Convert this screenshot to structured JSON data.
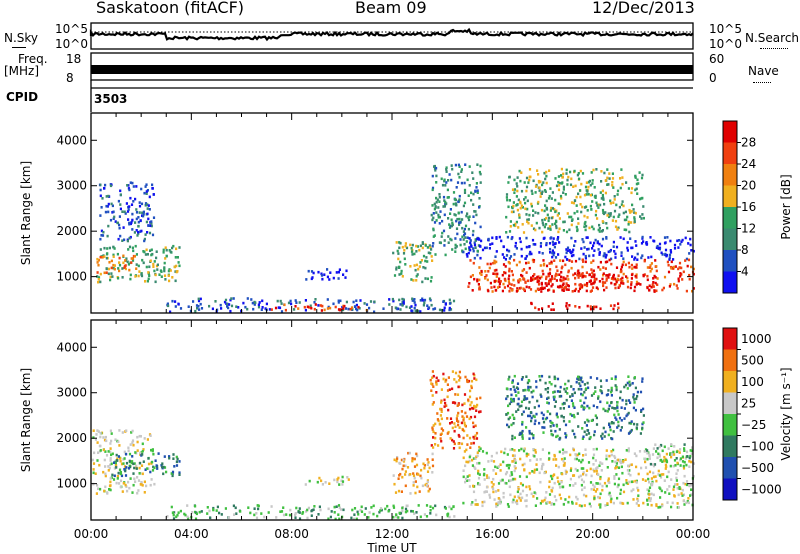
{
  "header": {
    "title": "Saskatoon (fitACF)",
    "beam": "Beam 09",
    "date": "12/Dec/2013"
  },
  "strips": {
    "nsky_label": "N.Sky",
    "nsearch_label": "N.Search",
    "nsky_ticks": [
      "10^5",
      "10^0"
    ],
    "nsearch_ticks": [
      "10^5",
      "10^0"
    ],
    "freq_label": "Freq.",
    "freq_unit": "[MHz]",
    "freq_ticks": [
      "18",
      "8"
    ],
    "nave_label": "Nave",
    "nave_ticks": [
      "60",
      "0"
    ],
    "cpid_label": "CPID",
    "cpid_value": "3503"
  },
  "colors": {
    "power_scale": [
      "#1010f0",
      "#2050c0",
      "#3a8a70",
      "#30a060",
      "#f0b020",
      "#f08010",
      "#f04010",
      "#e00000"
    ],
    "velocity_scale": [
      "#1010c0",
      "#2050b0",
      "#307a60",
      "#40c040",
      "#c8c8c8",
      "#f0b020",
      "#f07010",
      "#e01010"
    ]
  },
  "chart_data": [
    {
      "type": "heatmap",
      "ylabel": "Slant Range [km]",
      "ylim": [
        200,
        4600
      ],
      "yticks": [
        "1000",
        "2000",
        "3000",
        "4000"
      ],
      "xlim": [
        0,
        24
      ],
      "colorbar_label": "Power [dB]",
      "colorbar_ticks": [
        "4",
        "8",
        "12",
        "16",
        "20",
        "24",
        "28"
      ],
      "blobs": [
        {
          "t0": 0.2,
          "t1": 3.5,
          "r0": 900,
          "r1": 1700,
          "level": 3
        },
        {
          "t0": 0.2,
          "t1": 1.8,
          "r0": 1100,
          "r1": 1500,
          "level": 5
        },
        {
          "t0": 0.3,
          "t1": 2.5,
          "r0": 1800,
          "r1": 3100,
          "level": 1
        },
        {
          "t0": 3.0,
          "t1": 14.5,
          "r0": 250,
          "r1": 550,
          "level": 1
        },
        {
          "t0": 7.0,
          "t1": 11.0,
          "r0": 280,
          "r1": 420,
          "level": 6
        },
        {
          "t0": 8.5,
          "t1": 10.3,
          "r0": 950,
          "r1": 1200,
          "level": 0
        },
        {
          "t0": 12.0,
          "t1": 13.6,
          "r0": 900,
          "r1": 1800,
          "level": 3
        },
        {
          "t0": 13.5,
          "t1": 15.5,
          "r0": 1500,
          "r1": 3500,
          "level": 2
        },
        {
          "t0": 14.8,
          "t1": 24.0,
          "r0": 1400,
          "r1": 1900,
          "level": 0
        },
        {
          "t0": 15.0,
          "t1": 24.0,
          "r0": 700,
          "r1": 1400,
          "level": 6
        },
        {
          "t0": 16.0,
          "t1": 22.5,
          "r0": 700,
          "r1": 1100,
          "level": 7
        },
        {
          "t0": 17.5,
          "t1": 21.0,
          "r0": 300,
          "r1": 450,
          "level": 7
        },
        {
          "t0": 16.5,
          "t1": 22.0,
          "r0": 2000,
          "r1": 3400,
          "level": 3
        }
      ]
    },
    {
      "type": "heatmap",
      "ylabel": "Slant Range [km]",
      "ylim": [
        200,
        4600
      ],
      "yticks": [
        "1000",
        "2000",
        "3000",
        "4000"
      ],
      "xlim": [
        0,
        24
      ],
      "xlabel": "Time UT",
      "xticks": [
        "00:00",
        "04:00",
        "08:00",
        "12:00",
        "16:00",
        "20:00",
        "00:00"
      ],
      "colorbar_label": "Velocity [m s⁻¹]",
      "colorbar_ticks": [
        "1000",
        "500",
        "100",
        "25",
        "−25",
        "−100",
        "−500",
        "−1000"
      ],
      "blobs": [
        {
          "t0": 0.0,
          "t1": 2.5,
          "r0": 800,
          "r1": 2200,
          "level": 4
        },
        {
          "t0": 0.8,
          "t1": 3.5,
          "r0": 1200,
          "r1": 1700,
          "level": 2
        },
        {
          "t0": 3.0,
          "t1": 14.5,
          "r0": 250,
          "r1": 550,
          "level": 3
        },
        {
          "t0": 8.5,
          "t1": 10.3,
          "r0": 1000,
          "r1": 1200,
          "level": 4
        },
        {
          "t0": 12.0,
          "t1": 13.6,
          "r0": 800,
          "r1": 1700,
          "level": 5
        },
        {
          "t0": 13.5,
          "t1": 15.5,
          "r0": 1800,
          "r1": 3500,
          "level": 6
        },
        {
          "t0": 14.8,
          "t1": 24.0,
          "r0": 500,
          "r1": 1800,
          "level": 4
        },
        {
          "t0": 22.0,
          "t1": 24.0,
          "r0": 1400,
          "r1": 1900,
          "level": 3
        },
        {
          "t0": 16.5,
          "t1": 22.0,
          "r0": 2000,
          "r1": 3400,
          "level": 2
        }
      ]
    }
  ]
}
